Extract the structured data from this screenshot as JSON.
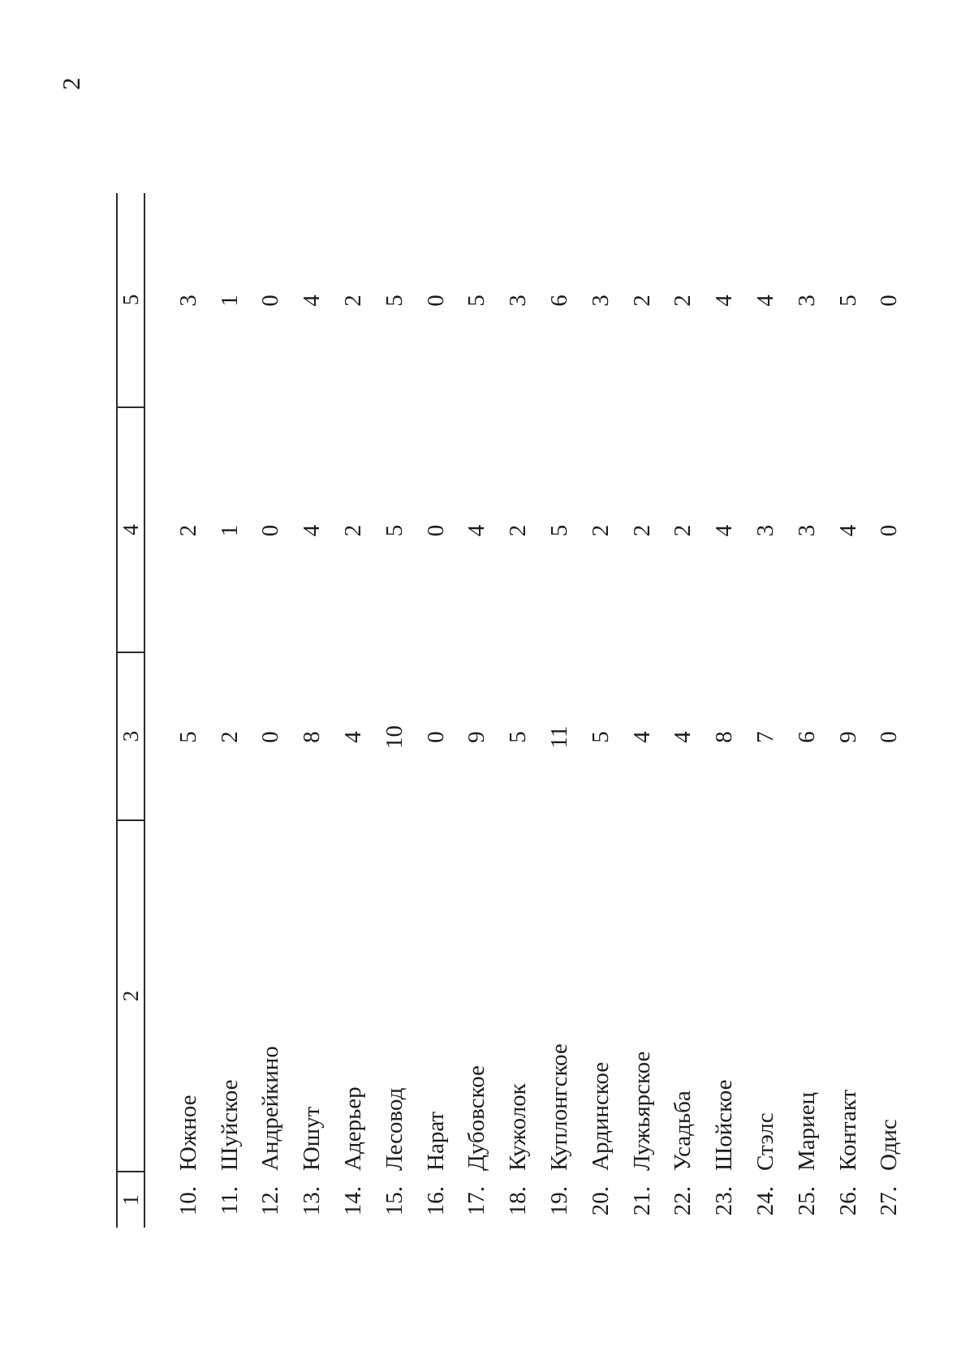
{
  "page": {
    "number": "2"
  },
  "table": {
    "headers": [
      "1",
      "2",
      "3",
      "4",
      "5"
    ],
    "rows": [
      {
        "num": "10.",
        "name": "Южное",
        "c3": "5",
        "c4": "2",
        "c5": "3"
      },
      {
        "num": "11.",
        "name": "Шуйское",
        "c3": "2",
        "c4": "1",
        "c5": "1"
      },
      {
        "num": "12.",
        "name": "Андрейкино",
        "c3": "0",
        "c4": "0",
        "c5": "0"
      },
      {
        "num": "13.",
        "name": "Юшут",
        "c3": "8",
        "c4": "4",
        "c5": "4"
      },
      {
        "num": "14.",
        "name": "Адерьер",
        "c3": "4",
        "c4": "2",
        "c5": "2"
      },
      {
        "num": "15.",
        "name": "Лесовод",
        "c3": "10",
        "c4": "5",
        "c5": "5"
      },
      {
        "num": "16.",
        "name": "Нарат",
        "c3": "0",
        "c4": "0",
        "c5": "0"
      },
      {
        "num": "17.",
        "name": "Дубовское",
        "c3": "9",
        "c4": "4",
        "c5": "5"
      },
      {
        "num": "18.",
        "name": "Кужолок",
        "c3": "5",
        "c4": "2",
        "c5": "3"
      },
      {
        "num": "19.",
        "name": "Куплонгское",
        "c3": "11",
        "c4": "5",
        "c5": "6"
      },
      {
        "num": "20.",
        "name": "Ардинское",
        "c3": "5",
        "c4": "2",
        "c5": "3"
      },
      {
        "num": "21.",
        "name": "Лужьярское",
        "c3": "4",
        "c4": "2",
        "c5": "2"
      },
      {
        "num": "22.",
        "name": "Усадьба",
        "c3": "4",
        "c4": "2",
        "c5": "2"
      },
      {
        "num": "23.",
        "name": "Шойское",
        "c3": "8",
        "c4": "4",
        "c5": "4"
      },
      {
        "num": "24.",
        "name": "Стэлс",
        "c3": "7",
        "c4": "3",
        "c5": "4"
      },
      {
        "num": "25.",
        "name": "Мариец",
        "c3": "6",
        "c4": "3",
        "c5": "3"
      },
      {
        "num": "26.",
        "name": "Контакт",
        "c3": "9",
        "c4": "4",
        "c5": "5"
      },
      {
        "num": "27.",
        "name": "Одис",
        "c3": "0",
        "c4": "0",
        "c5": "0"
      }
    ]
  }
}
